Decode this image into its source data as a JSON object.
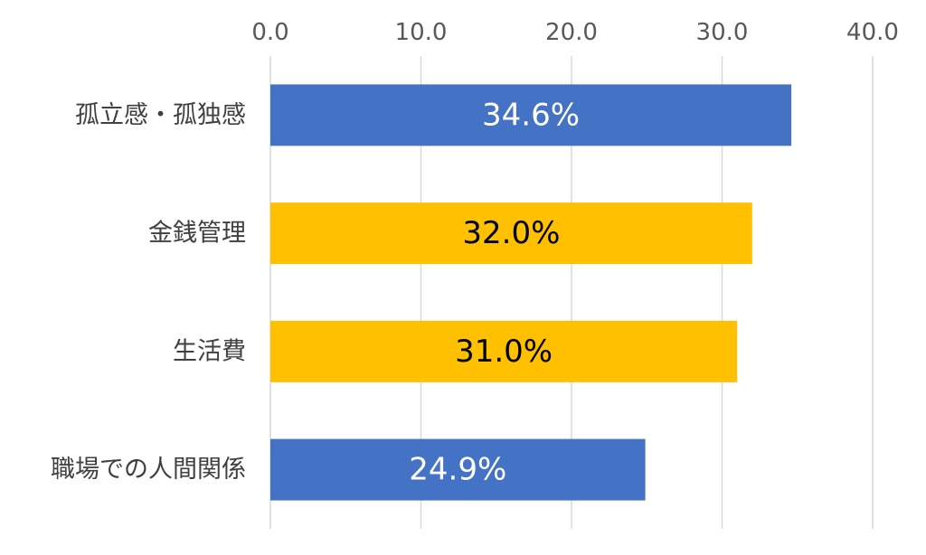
{
  "chart_data": {
    "type": "bar",
    "orientation": "horizontal",
    "title": "",
    "xlabel": "",
    "ylabel": "",
    "xlim": [
      0,
      40
    ],
    "x_ticks": [
      0,
      10,
      20,
      30,
      40
    ],
    "x_tick_labels": [
      "0.0",
      "10.0",
      "20.0",
      "30.0",
      "40.0"
    ],
    "x_axis_position": "top",
    "grid": true,
    "legend": "none",
    "categories": [
      "孤立感・孤独感",
      "金銭管理",
      "生活費",
      "職場での人間関係"
    ],
    "values": [
      34.6,
      32.0,
      31.0,
      24.9
    ],
    "data_labels": [
      "34.6%",
      "32.0%",
      "31.0%",
      "24.9%"
    ],
    "bar_colors": [
      "#4472C4",
      "#FFC000",
      "#FFC000",
      "#4472C4"
    ],
    "data_label_colors": [
      "#FFFFFF",
      "#000000",
      "#000000",
      "#FFFFFF"
    ]
  }
}
